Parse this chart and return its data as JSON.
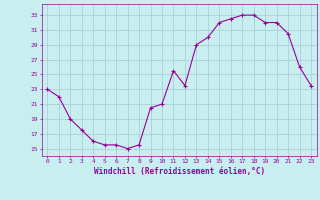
{
  "x": [
    0,
    1,
    2,
    3,
    4,
    5,
    6,
    7,
    8,
    9,
    10,
    11,
    12,
    13,
    14,
    15,
    16,
    17,
    18,
    19,
    20,
    21,
    22,
    23
  ],
  "y": [
    23,
    22,
    19,
    17.5,
    16,
    15.5,
    15.5,
    15,
    15.5,
    20.5,
    21,
    25.5,
    23.5,
    29,
    30,
    32,
    32.5,
    33,
    33,
    32,
    32,
    30.5,
    26,
    23.5
  ],
  "line_color": "#990099",
  "marker": "+",
  "bg_color": "#c8eef0",
  "grid_color": "#a0ccd0",
  "xlabel": "Windchill (Refroidissement éolien,°C)",
  "ylabel_ticks": [
    15,
    17,
    19,
    21,
    23,
    25,
    27,
    29,
    31,
    33
  ],
  "ylim": [
    14.0,
    34.5
  ],
  "xlim": [
    -0.5,
    23.5
  ],
  "tick_color": "#990099",
  "text_color": "#990099",
  "figsize": [
    3.2,
    2.0
  ],
  "dpi": 100
}
